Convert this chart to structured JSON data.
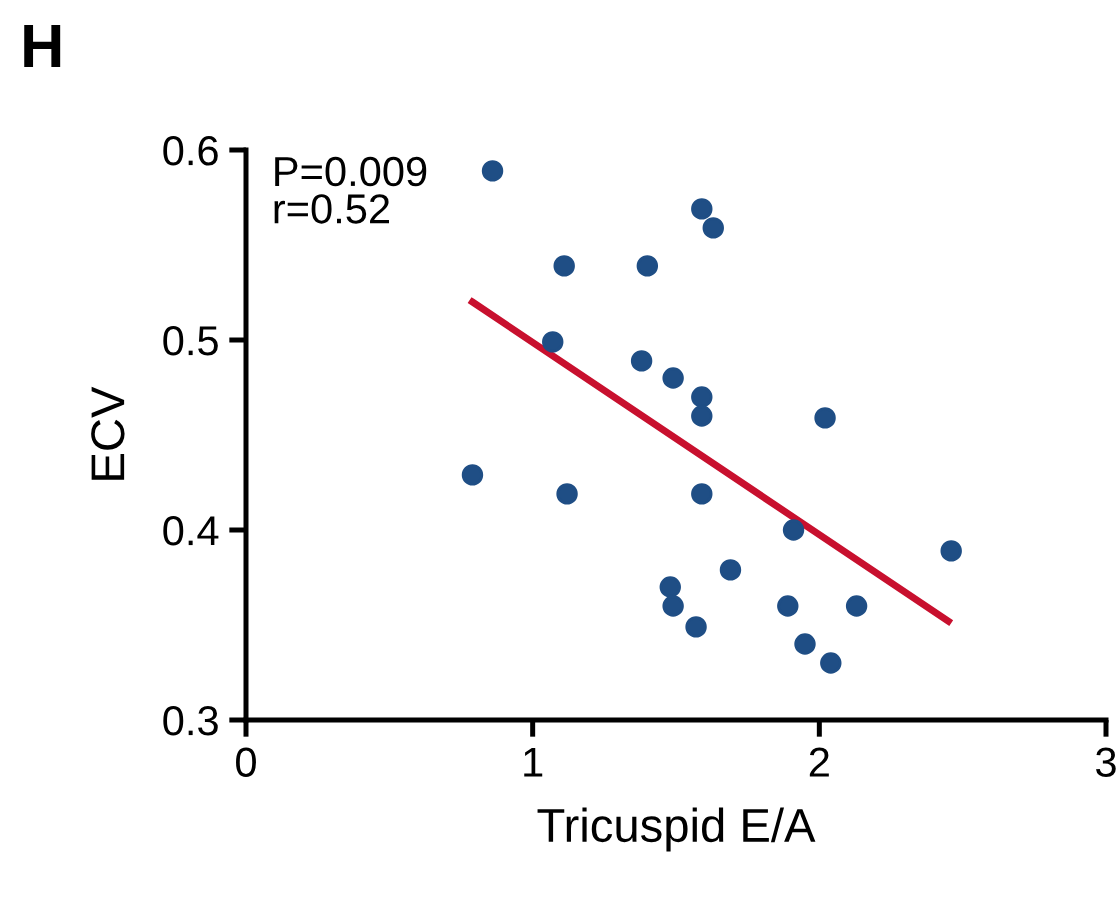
{
  "chart_data": {
    "type": "scatter",
    "title": "H",
    "xlabel": "Tricuspid E/A",
    "ylabel": "ECV",
    "annotations": [
      "P=0.009\nr=0.52"
    ],
    "xlim": [
      0,
      3
    ],
    "xticks": [
      0,
      1,
      2,
      3
    ],
    "ylim": [
      0.3,
      0.6
    ],
    "yticks": [
      0.3,
      0.4,
      0.5,
      0.6
    ],
    "grid": false,
    "series": [
      {
        "marker": "circle",
        "color": "#1f4e85",
        "x": [
          0.86,
          1.59,
          1.63,
          1.11,
          1.4,
          1.07,
          1.38,
          1.49,
          1.59,
          1.59,
          2.02,
          0.79,
          1.12,
          1.59,
          1.91,
          2.46,
          1.69,
          1.48,
          1.49,
          1.57,
          1.89,
          2.13,
          1.95,
          2.04
        ],
        "values": [
          0.589,
          0.569,
          0.559,
          0.539,
          0.539,
          0.499,
          0.489,
          0.48,
          0.47,
          0.46,
          0.459,
          0.429,
          0.419,
          0.419,
          0.4,
          0.389,
          0.379,
          0.37,
          0.36,
          0.349,
          0.36,
          0.36,
          0.34,
          0.33
        ]
      },
      {
        "type": "line",
        "color": "#c8102e",
        "x": [
          0.79,
          2.45
        ],
        "values": [
          0.52,
          0.352
        ]
      }
    ]
  }
}
